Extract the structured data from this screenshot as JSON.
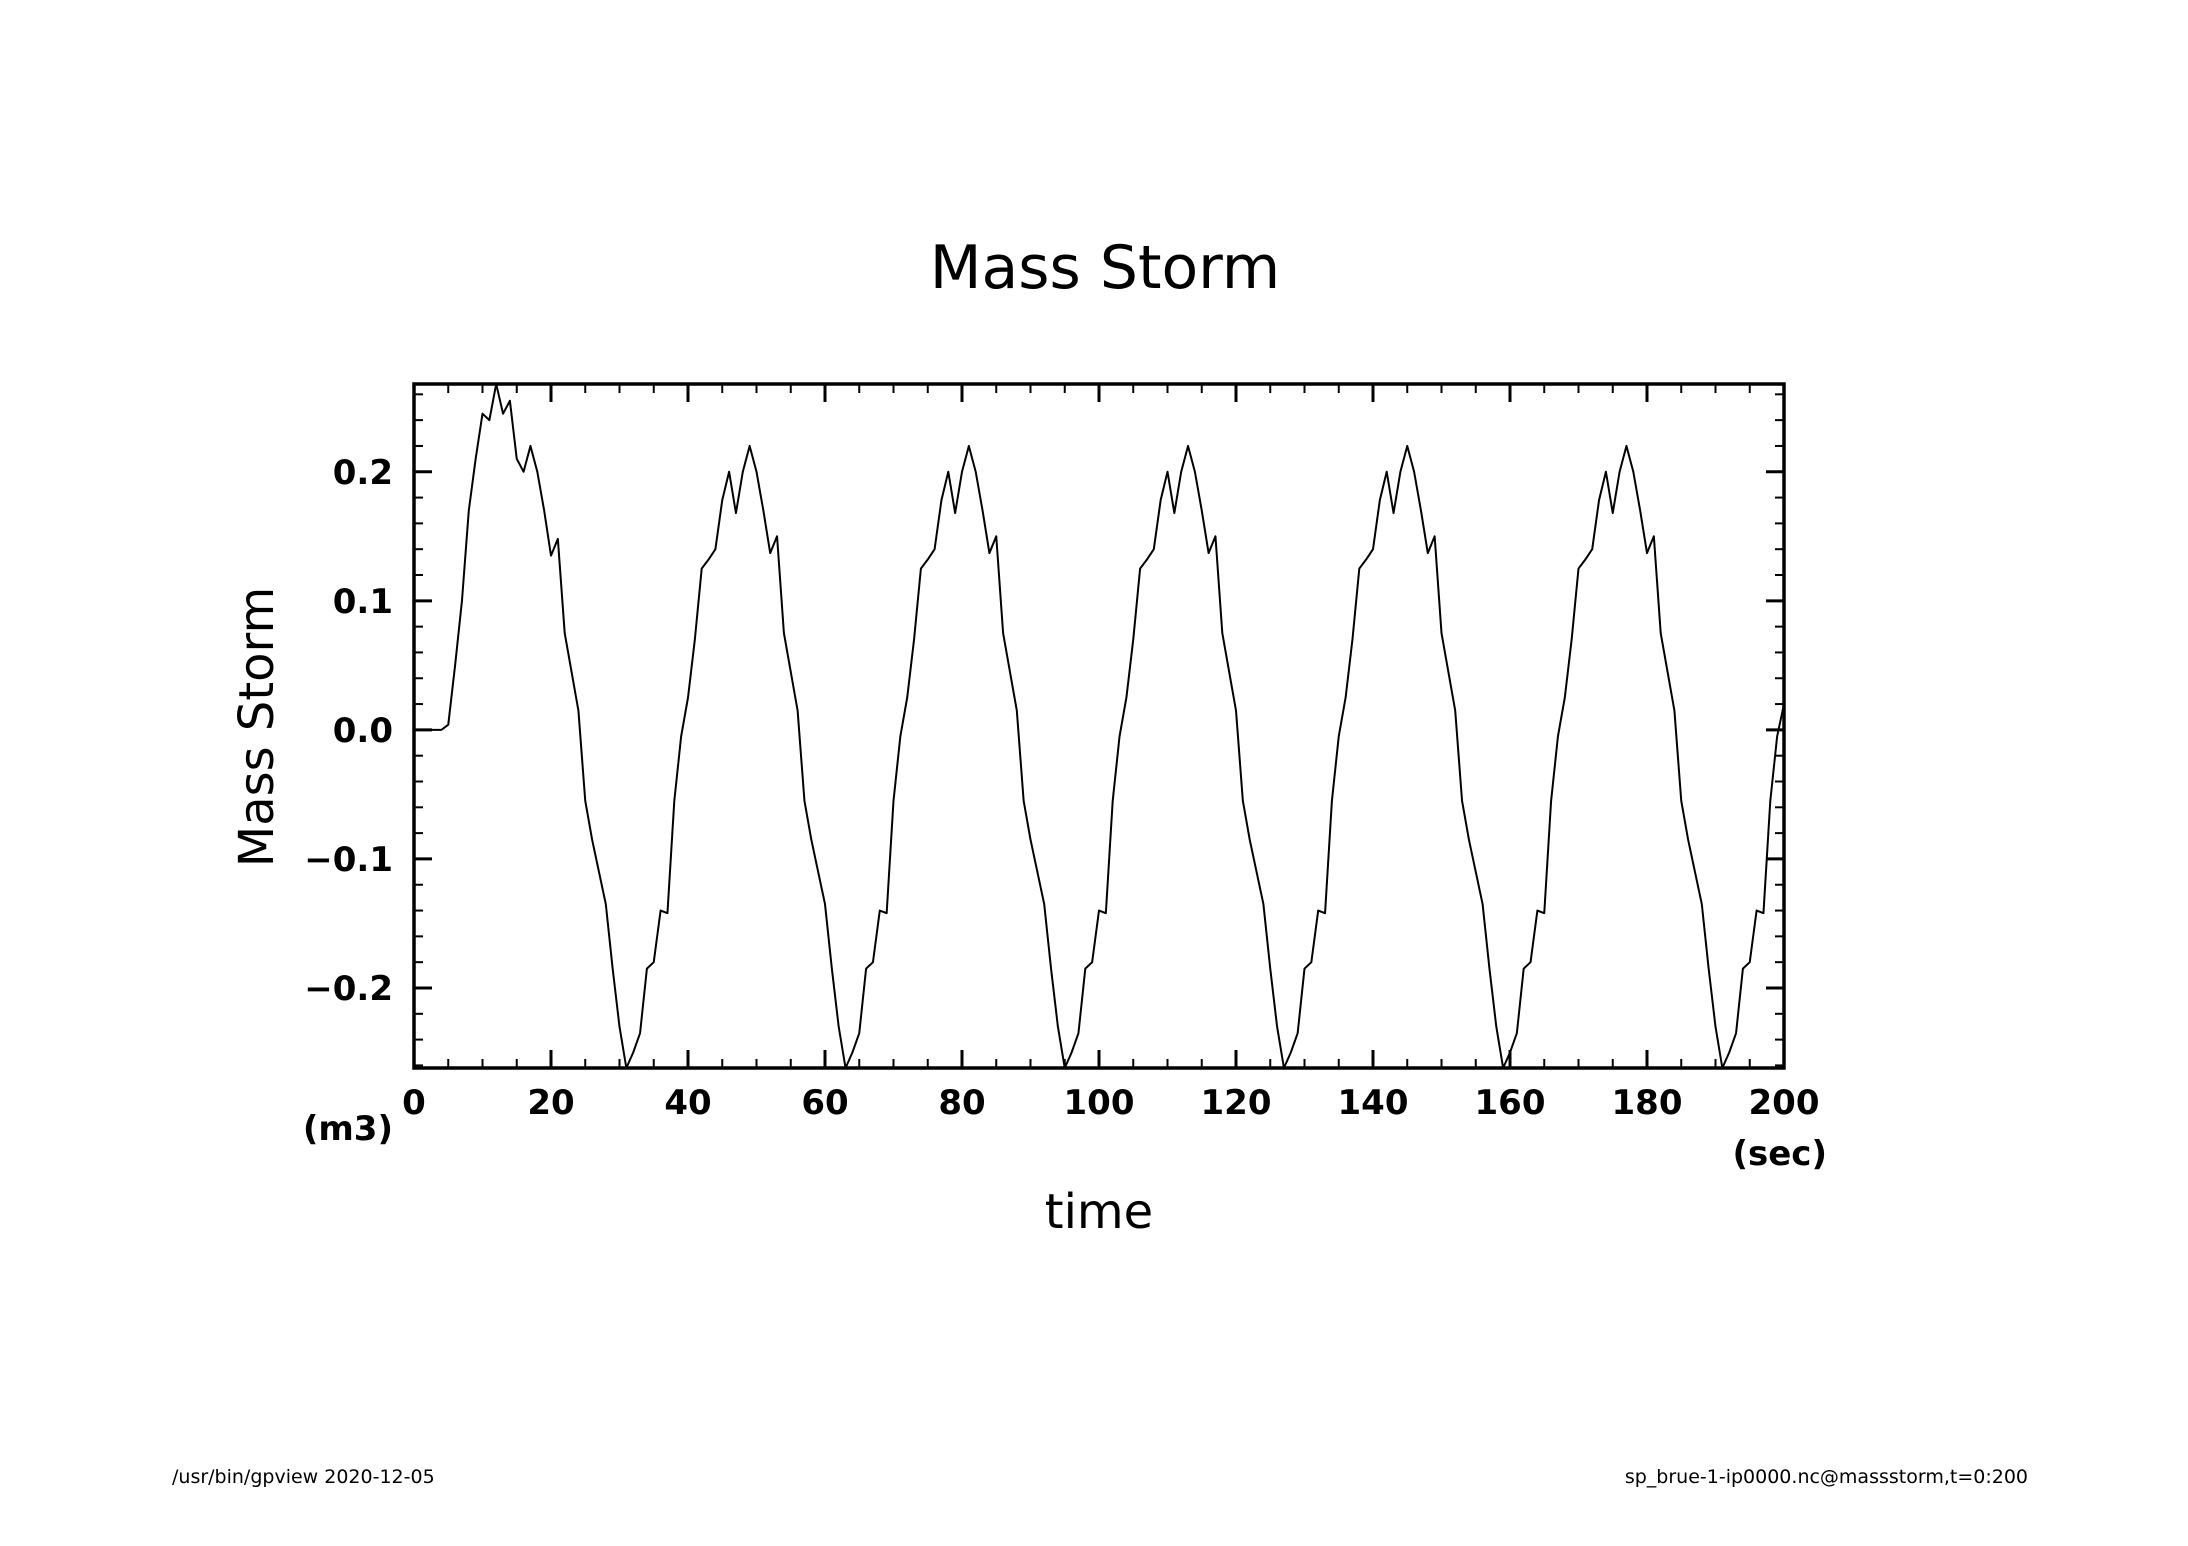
{
  "chart_data": {
    "type": "line",
    "title": "Mass Storm",
    "xlabel": "time",
    "ylabel": "Mass Storm",
    "xunit": "(sec)",
    "yunit": "(m3)",
    "xlim": [
      0,
      200
    ],
    "ylim": [
      -0.262,
      0.268
    ],
    "xticks": [
      0,
      20,
      40,
      60,
      80,
      100,
      120,
      140,
      160,
      180,
      200
    ],
    "xtick_labels": [
      "0",
      "20",
      "40",
      "60",
      "80",
      "100",
      "120",
      "140",
      "160",
      "180",
      "200"
    ],
    "xminor_step": 5,
    "yticks": [
      -0.2,
      -0.1,
      0.0,
      0.1,
      0.2
    ],
    "ytick_labels": [
      "−0.2",
      "−0.1",
      "0.0",
      "0.1",
      "0.2"
    ],
    "yminor_step": 0.02,
    "grid": false,
    "line_color": "#000000",
    "series": [
      {
        "x": [
          0,
          1,
          2,
          3,
          4,
          5,
          6,
          7,
          8,
          9,
          10,
          11,
          12,
          13,
          14,
          15,
          16,
          17,
          18,
          19,
          20,
          21,
          22,
          23,
          24,
          25,
          26,
          27,
          28,
          29,
          30,
          31,
          32,
          33,
          34,
          35,
          36,
          37,
          38,
          39,
          40,
          41,
          42,
          43,
          44,
          45,
          46,
          47,
          48,
          49,
          50,
          51,
          52,
          53,
          54,
          55,
          56,
          57,
          58,
          59,
          60,
          61,
          62,
          63,
          64,
          65,
          66,
          67,
          68,
          69,
          70,
          71,
          72,
          73,
          74,
          75,
          76,
          77,
          78,
          79,
          80,
          81,
          82,
          83,
          84,
          85,
          86,
          87,
          88,
          89,
          90,
          91,
          92,
          93,
          94,
          95,
          96,
          97,
          98,
          99,
          100,
          101,
          102,
          103,
          104,
          105,
          106,
          107,
          108,
          109,
          110,
          111,
          112,
          113,
          114,
          115,
          116,
          117,
          118,
          119,
          120,
          121,
          122,
          123,
          124,
          125,
          126,
          127,
          128,
          129,
          130,
          131,
          132,
          133,
          134,
          135,
          136,
          137,
          138,
          139,
          140,
          141,
          142,
          143,
          144,
          145,
          146,
          147,
          148,
          149,
          150,
          151,
          152,
          153,
          154,
          155,
          156,
          157,
          158,
          159,
          160,
          161,
          162,
          163,
          164,
          165,
          166,
          167,
          168,
          169,
          170,
          171,
          172,
          173,
          174,
          175,
          176,
          177,
          178,
          179,
          180,
          181,
          182,
          183,
          184,
          185,
          186,
          187,
          188,
          189,
          190,
          191,
          192,
          193,
          194,
          195,
          196,
          197,
          198,
          199,
          200
        ],
        "values": [
          0,
          0,
          0,
          0,
          0,
          0.004,
          0.05,
          0.1,
          0.17,
          0.21,
          0.245,
          0.24,
          0.268,
          0.245,
          0.255,
          0.21,
          0.2,
          0.22,
          0.2,
          0.17,
          0.135,
          0.148,
          0.075,
          0.045,
          0.015,
          -0.055,
          -0.085,
          -0.11,
          -0.135,
          -0.185,
          -0.23,
          -0.262,
          -0.25,
          -0.235,
          -0.185,
          -0.18,
          -0.14,
          -0.142,
          -0.055,
          -0.005,
          0.025,
          0.07,
          0.125,
          0.132,
          0.14,
          0.178,
          0.2,
          0.168,
          0.2,
          0.22,
          0.2,
          0.17,
          0.137,
          0.15,
          0.075,
          0.045,
          0.015,
          -0.055,
          -0.085,
          -0.11,
          -0.135,
          -0.185,
          -0.23,
          -0.262,
          -0.25,
          -0.235,
          -0.185,
          -0.18,
          -0.14,
          -0.142,
          -0.055,
          -0.005,
          0.025,
          0.07,
          0.125,
          0.132,
          0.14,
          0.178,
          0.2,
          0.168,
          0.2,
          0.22,
          0.2,
          0.17,
          0.137,
          0.15,
          0.075,
          0.045,
          0.015,
          -0.055,
          -0.085,
          -0.11,
          -0.135,
          -0.185,
          -0.23,
          -0.262,
          -0.25,
          -0.235,
          -0.185,
          -0.18,
          -0.14,
          -0.142,
          -0.055,
          -0.005,
          0.025,
          0.07,
          0.125,
          0.132,
          0.14,
          0.178,
          0.2,
          0.168,
          0.2,
          0.22,
          0.2,
          0.17,
          0.137,
          0.15,
          0.075,
          0.045,
          0.015,
          -0.055,
          -0.085,
          -0.11,
          -0.135,
          -0.185,
          -0.23,
          -0.262,
          -0.25,
          -0.235,
          -0.185,
          -0.18,
          -0.14,
          -0.142,
          -0.055,
          -0.005,
          0.025,
          0.07,
          0.125,
          0.132,
          0.14,
          0.178,
          0.2,
          0.168,
          0.2,
          0.22,
          0.2,
          0.17,
          0.137,
          0.15,
          0.075,
          0.045,
          0.015,
          -0.055,
          -0.085,
          -0.11,
          -0.135,
          -0.185,
          -0.23,
          -0.262,
          -0.25,
          -0.235,
          -0.185,
          -0.18,
          -0.14,
          -0.142,
          -0.055,
          -0.005,
          0.025,
          0.07,
          0.125,
          0.132,
          0.14,
          0.178,
          0.2,
          0.168,
          0.2,
          0.22,
          0.2,
          0.17,
          0.137,
          0.15,
          0.075,
          0.045,
          0.015,
          -0.055,
          -0.085,
          -0.11,
          -0.135,
          -0.185,
          -0.23,
          -0.262,
          -0.25,
          -0.235,
          -0.185,
          -0.18,
          -0.14,
          -0.142,
          -0.055,
          -0.005,
          0.02
        ]
      }
    ]
  },
  "footer": {
    "left": "/usr/bin/gpview   2020-12-05",
    "right": "sp_brue-1-ip0000.nc@massstorm,t=0:200"
  }
}
